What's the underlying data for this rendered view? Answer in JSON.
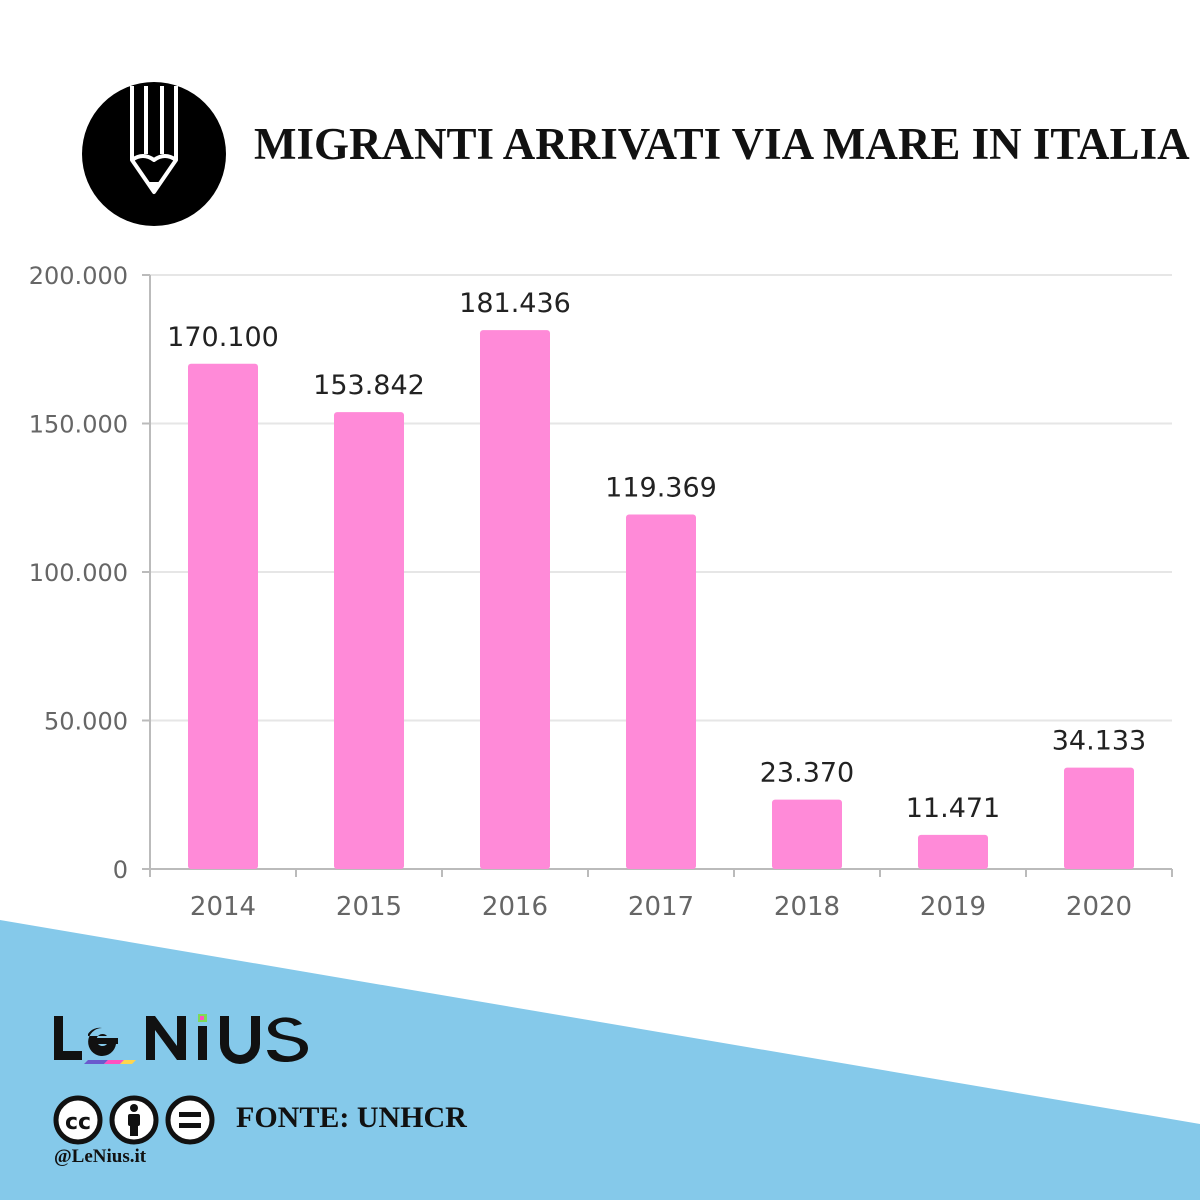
{
  "header": {
    "title": "MIGRANTI ARRIVATI VIA MARE IN ITALIA",
    "logo_icon": "pencil-icon"
  },
  "chart_data": {
    "type": "bar",
    "title": "MIGRANTI ARRIVATI VIA MARE IN ITALIA",
    "xlabel": "",
    "ylabel": "",
    "categories": [
      "2014",
      "2015",
      "2016",
      "2017",
      "2018",
      "2019",
      "2020"
    ],
    "values": [
      170100,
      153842,
      181436,
      119369,
      23370,
      11471,
      34133
    ],
    "value_labels": [
      "170.100",
      "153.842",
      "181.436",
      "119.369",
      "23.370",
      "11.471",
      "34.133"
    ],
    "ylim": [
      0,
      200000
    ],
    "y_ticks": [
      0,
      50000,
      100000,
      150000,
      200000
    ],
    "y_tick_labels": [
      "0",
      "50.000",
      "100.000",
      "150.000",
      "200.000"
    ],
    "grid": true,
    "bar_color": "#ff8ad8"
  },
  "footer": {
    "brand": "LeNiUS",
    "source": "FONTE: UNHCR",
    "handle": "@LeNius.it",
    "license_icons": [
      "cc-icon",
      "by-icon",
      "nd-icon"
    ],
    "band_color": "#85c9ea"
  }
}
